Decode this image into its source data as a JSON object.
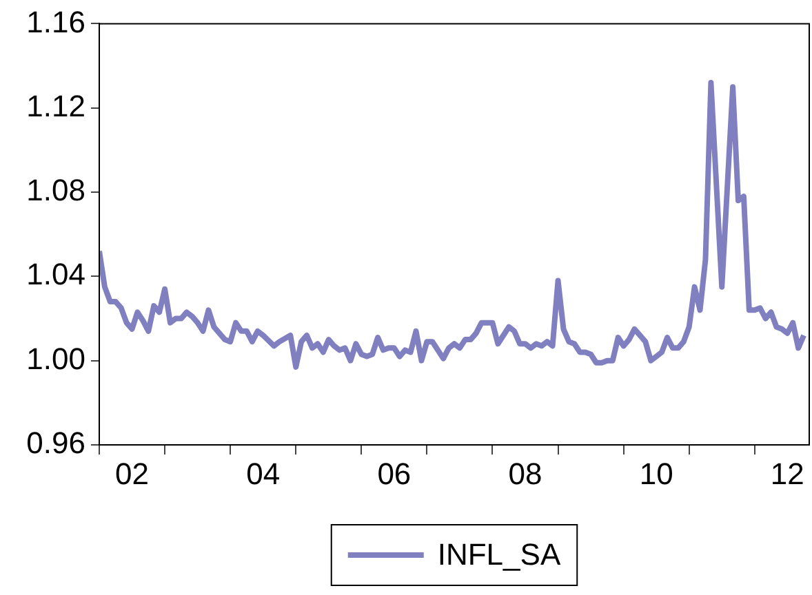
{
  "chart_data": {
    "type": "line",
    "legend": "bottom",
    "x": [
      "2002-01",
      "2002-02",
      "2002-03",
      "2002-04",
      "2002-05",
      "2002-06",
      "2002-07",
      "2002-08",
      "2002-09",
      "2002-10",
      "2002-11",
      "2002-12",
      "2003-01",
      "2003-02",
      "2003-03",
      "2003-04",
      "2003-05",
      "2003-06",
      "2003-07",
      "2003-08",
      "2003-09",
      "2003-10",
      "2003-11",
      "2003-12",
      "2004-01",
      "2004-02",
      "2004-03",
      "2004-04",
      "2004-05",
      "2004-06",
      "2004-07",
      "2004-09",
      "2004-10",
      "2004-12",
      "2005-01",
      "2005-02",
      "2005-03",
      "2005-04",
      "2005-05",
      "2005-06",
      "2005-07",
      "2005-08",
      "2005-09",
      "2005-10",
      "2005-11",
      "2005-12",
      "2006-01",
      "2006-02",
      "2006-03",
      "2006-04",
      "2006-05",
      "2006-06",
      "2006-07",
      "2006-08",
      "2006-09",
      "2006-10",
      "2006-11",
      "2006-12",
      "2007-01",
      "2007-02",
      "2007-03",
      "2007-04",
      "2007-05",
      "2007-06",
      "2007-07",
      "2007-08",
      "2007-09",
      "2007-10",
      "2007-11",
      "2007-12",
      "2008-01",
      "2008-02",
      "2008-03",
      "2008-04",
      "2008-05",
      "2008-06",
      "2008-07",
      "2008-08",
      "2008-09",
      "2008-10",
      "2008-11",
      "2008-12",
      "2009-01",
      "2009-02",
      "2009-03",
      "2009-04",
      "2009-05",
      "2009-06",
      "2009-07",
      "2009-08",
      "2009-09",
      "2009-10",
      "2009-11",
      "2009-12",
      "2010-01",
      "2010-02",
      "2010-03",
      "2010-04",
      "2010-05",
      "2010-06",
      "2010-07",
      "2010-08",
      "2010-09",
      "2010-10",
      "2010-11",
      "2010-12",
      "2011-01",
      "2011-02",
      "2011-03",
      "2011-04",
      "2011-05",
      "2011-07",
      "2011-09",
      "2011-10",
      "2011-11",
      "2011-12",
      "2012-01",
      "2012-02",
      "2012-03",
      "2012-04",
      "2012-05",
      "2012-06",
      "2012-07",
      "2012-08",
      "2012-09",
      "2012-10"
    ],
    "series": [
      {
        "name": "INFL_SA",
        "color": "#8080c0",
        "values": [
          1.052,
          1.035,
          1.028,
          1.028,
          1.025,
          1.018,
          1.015,
          1.023,
          1.019,
          1.014,
          1.026,
          1.023,
          1.034,
          1.018,
          1.02,
          1.02,
          1.023,
          1.021,
          1.018,
          1.014,
          1.024,
          1.016,
          1.013,
          1.01,
          1.009,
          1.018,
          1.014,
          1.014,
          1.009,
          1.014,
          1.012,
          1.007,
          1.009,
          1.012,
          0.997,
          1.009,
          1.012,
          1.006,
          1.008,
          1.004,
          1.01,
          1.007,
          1.005,
          1.006,
          1.0,
          1.008,
          1.003,
          1.002,
          1.003,
          1.011,
          1.005,
          1.006,
          1.006,
          1.002,
          1.005,
          1.004,
          1.014,
          1.0,
          1.009,
          1.009,
          1.005,
          1.001,
          1.006,
          1.008,
          1.006,
          1.01,
          1.01,
          1.013,
          1.018,
          1.018,
          1.018,
          1.008,
          1.012,
          1.016,
          1.014,
          1.008,
          1.008,
          1.006,
          1.008,
          1.007,
          1.009,
          1.007,
          1.038,
          1.015,
          1.009,
          1.008,
          1.004,
          1.004,
          1.003,
          0.999,
          0.999,
          1.0,
          1.0,
          1.011,
          1.007,
          1.01,
          1.015,
          1.012,
          1.009,
          1.0,
          1.002,
          1.004,
          1.011,
          1.006,
          1.006,
          1.009,
          1.016,
          1.035,
          1.024,
          1.048,
          1.132,
          1.035,
          1.13,
          1.076,
          1.078,
          1.024,
          1.024,
          1.025,
          1.02,
          1.023,
          1.016,
          1.015,
          1.013,
          1.018,
          1.006,
          1.012
        ]
      }
    ],
    "xlim": [
      "2002-01",
      "2012-11"
    ],
    "xticks": [
      {
        "value": "2002-01",
        "label": null
      },
      {
        "value": "2002-07",
        "label": "02"
      },
      {
        "value": "2003-01",
        "label": null
      },
      {
        "value": "2004-01",
        "label": null
      },
      {
        "value": "2004-07",
        "label": "04"
      },
      {
        "value": "2005-01",
        "label": null
      },
      {
        "value": "2006-01",
        "label": null
      },
      {
        "value": "2006-07",
        "label": "06"
      },
      {
        "value": "2007-01",
        "label": null
      },
      {
        "value": "2008-01",
        "label": null
      },
      {
        "value": "2008-07",
        "label": "08"
      },
      {
        "value": "2009-01",
        "label": null
      },
      {
        "value": "2010-01",
        "label": null
      },
      {
        "value": "2010-07",
        "label": "10"
      },
      {
        "value": "2011-01",
        "label": null
      },
      {
        "value": "2012-01",
        "label": null
      },
      {
        "value": "2012-07",
        "label": "12"
      }
    ],
    "ylim": [
      0.96,
      1.16
    ],
    "yticks": [
      0.96,
      {
        "value": 1,
        "label": "1.00"
      },
      1.04,
      1.08,
      1.12,
      1.16
    ]
  }
}
